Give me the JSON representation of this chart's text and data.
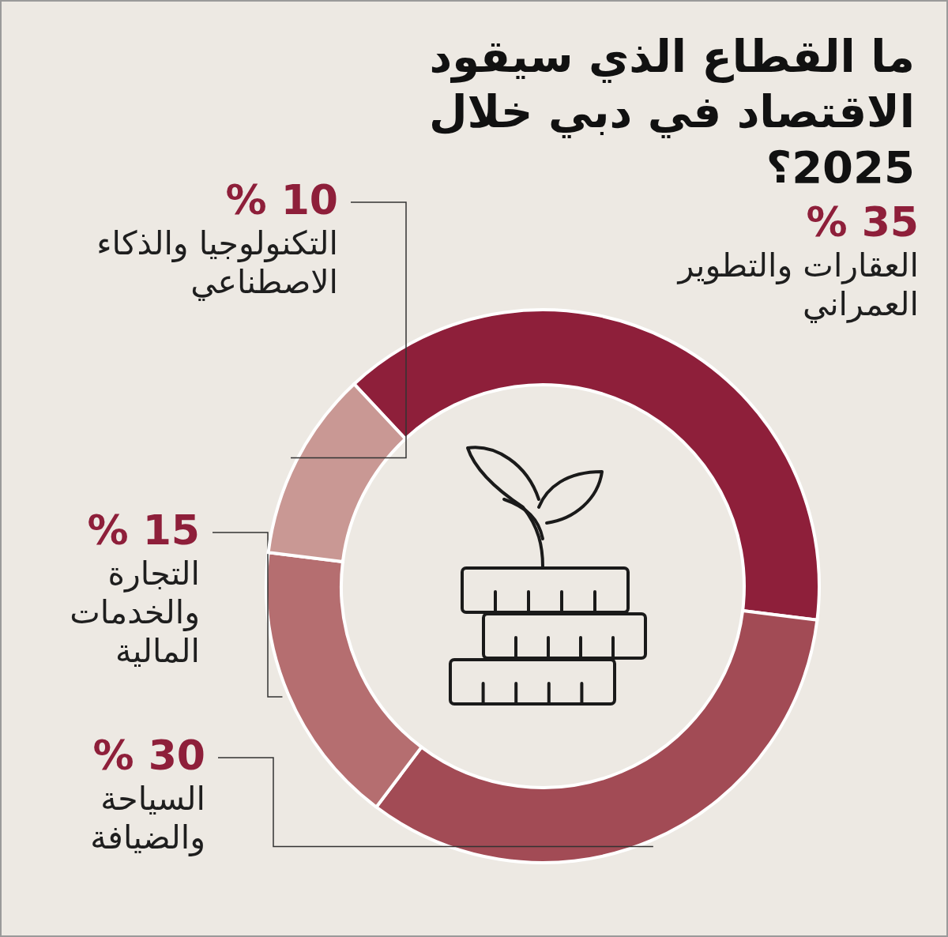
{
  "chart_data": {
    "type": "donut",
    "title": "ما القطاع الذي سيقود الاقتصاد في دبي خلال 2025؟",
    "categories": [
      "العقارات والتطوير العمراني",
      "السياحة والضيافة",
      "التجارة والخدمات المالية",
      "التكنولوجيا والذكاء الاصطناعي"
    ],
    "values": [
      35,
      30,
      15,
      10
    ],
    "colors": [
      "#8e1f3a",
      "#a24b55",
      "#b56e70",
      "#c99894"
    ],
    "value_labels": [
      "35 %",
      "30 %",
      "15 %",
      "10 %"
    ]
  }
}
